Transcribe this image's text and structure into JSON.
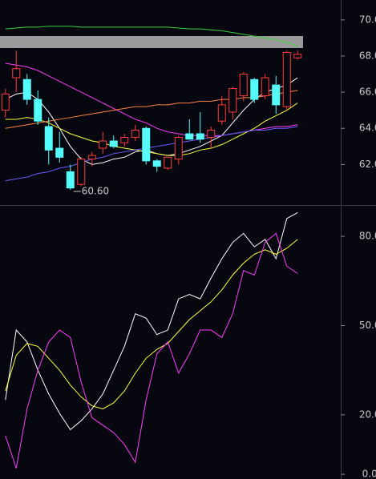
{
  "chart_data": [
    {
      "type": "candlestick",
      "categories": [
        null,
        null,
        null,
        null,
        null,
        null,
        null,
        null,
        null,
        null,
        null,
        null,
        null,
        null,
        null,
        null,
        null,
        null,
        null,
        null,
        null,
        null,
        null,
        null,
        null,
        null,
        null,
        null
      ],
      "open": [
        65.0,
        66.8,
        66.7,
        65.6,
        64.1,
        62.9,
        61.6,
        60.9,
        62.3,
        62.9,
        63.3,
        63.2,
        63.5,
        64.0,
        62.2,
        61.8,
        62.3,
        63.7,
        63.7,
        63.5,
        64.4,
        64.9,
        65.8,
        66.7,
        65.8,
        66.4,
        65.2,
        67.9
      ],
      "high": [
        66.2,
        68.3,
        67.0,
        66.1,
        64.6,
        63.8,
        62.0,
        62.4,
        62.7,
        63.8,
        63.6,
        63.7,
        64.2,
        64.1,
        62.3,
        62.4,
        63.6,
        64.5,
        64.9,
        64.1,
        65.8,
        66.3,
        67.1,
        66.8,
        67.0,
        66.9,
        68.3,
        68.3
      ],
      "low": [
        64.6,
        66.0,
        65.3,
        64.2,
        62.0,
        62.1,
        60.6,
        60.8,
        61.9,
        62.6,
        62.9,
        63.0,
        63.3,
        62.0,
        61.6,
        61.7,
        62.0,
        63.4,
        63.2,
        62.9,
        64.2,
        64.5,
        65.5,
        65.4,
        65.6,
        64.8,
        65.0,
        67.8
      ],
      "close": [
        65.9,
        67.3,
        65.6,
        64.4,
        62.8,
        62.4,
        60.7,
        62.3,
        62.5,
        63.3,
        63.0,
        63.5,
        63.9,
        62.2,
        61.9,
        62.4,
        63.5,
        63.4,
        63.4,
        63.9,
        65.3,
        66.2,
        67.0,
        65.6,
        66.8,
        65.3,
        68.2,
        68.1
      ],
      "up_color": "#ff3b3b",
      "down_color": "#54fcfc",
      "series": [
        {
          "color": "#ffffff",
          "values": [
            65.6,
            65.9,
            66.0,
            65.6,
            64.9,
            64.0,
            63.0,
            62.3,
            62.0,
            62.1,
            62.3,
            62.4,
            62.7,
            62.8,
            62.6,
            62.5,
            62.6,
            62.8,
            63.0,
            63.3,
            63.6,
            64.3,
            65.0,
            65.6,
            66.0,
            66.2,
            66.4,
            66.8
          ]
        },
        {
          "color": "#ffff3c",
          "values": [
            64.5,
            64.5,
            64.6,
            64.5,
            64.3,
            64.0,
            63.7,
            63.5,
            63.3,
            63.2,
            63.0,
            62.9,
            62.8,
            62.7,
            62.6,
            62.5,
            62.5,
            62.6,
            62.8,
            62.9,
            63.1,
            63.4,
            63.7,
            64.0,
            64.4,
            64.7,
            65.0,
            65.4
          ]
        },
        {
          "color": "#ff3cff",
          "values": [
            67.6,
            67.5,
            67.4,
            67.2,
            66.9,
            66.6,
            66.3,
            66.0,
            65.7,
            65.4,
            65.1,
            64.8,
            64.5,
            64.3,
            64.0,
            63.8,
            63.7,
            63.6,
            63.6,
            63.6,
            63.6,
            63.7,
            63.8,
            63.9,
            64.0,
            64.1,
            64.1,
            64.2
          ]
        },
        {
          "color": "#ff8040",
          "values": [
            64.0,
            64.1,
            64.2,
            64.3,
            64.4,
            64.5,
            64.6,
            64.7,
            64.8,
            64.9,
            65.0,
            65.1,
            65.2,
            65.2,
            65.3,
            65.3,
            65.4,
            65.4,
            65.5,
            65.5,
            65.6,
            65.6,
            65.7,
            65.7,
            65.8,
            65.9,
            66.0,
            66.1
          ]
        },
        {
          "color": "#6a5cff",
          "values": [
            61.1,
            61.2,
            61.3,
            61.5,
            61.6,
            61.8,
            61.9,
            62.1,
            62.3,
            62.4,
            62.6,
            62.7,
            62.8,
            62.9,
            63.0,
            63.1,
            63.2,
            63.3,
            63.4,
            63.5,
            63.6,
            63.7,
            63.8,
            63.9,
            63.9,
            64.0,
            64.0,
            64.1
          ]
        },
        {
          "color": "#3cd23c",
          "values": [
            69.5,
            69.55,
            69.6,
            69.6,
            69.65,
            69.65,
            69.65,
            69.6,
            69.6,
            69.6,
            69.6,
            69.6,
            69.6,
            69.6,
            69.6,
            69.6,
            69.55,
            69.5,
            69.5,
            69.45,
            69.4,
            69.3,
            69.2,
            69.1,
            69.0,
            68.9,
            68.75,
            68.55
          ]
        }
      ],
      "low_label": "60.60",
      "ylim": [
        59.8,
        71.1
      ],
      "yticks": [
        {
          "value": 62,
          "label": "62.00"
        },
        {
          "value": 64,
          "label": "64.00"
        },
        {
          "value": 66,
          "label": "66.00"
        },
        {
          "value": 68,
          "label": "68.00"
        },
        {
          "value": 70,
          "label": "70.00"
        }
      ]
    },
    {
      "type": "line",
      "categories": [
        null,
        null,
        null,
        null,
        null,
        null,
        null,
        null,
        null,
        null,
        null,
        null,
        null,
        null,
        null,
        null,
        null,
        null,
        null,
        null,
        null,
        null,
        null,
        null,
        null,
        null,
        null,
        null
      ],
      "series": [
        {
          "color": "#ffffff",
          "values": [
            25,
            48.5,
            44.5,
            35,
            27,
            20.5,
            15,
            18,
            22,
            27,
            35,
            43,
            54,
            52.5,
            47,
            48.5,
            59,
            60.5,
            59,
            66,
            72.5,
            78,
            81,
            76.5,
            79,
            72.5,
            86,
            88
          ]
        },
        {
          "color": "#ffff3c",
          "values": [
            28,
            40,
            44,
            43,
            39,
            35,
            30,
            26,
            23,
            22,
            24,
            28,
            34,
            39,
            42,
            44,
            48,
            52,
            55,
            58,
            62,
            67,
            71,
            74,
            75.5,
            74,
            76,
            79
          ]
        },
        {
          "color": "#ff3cff",
          "values": [
            13,
            2,
            22,
            35,
            44.5,
            48.5,
            46,
            31,
            19,
            16.5,
            14,
            10,
            4,
            25,
            40.5,
            44.5,
            34,
            40.5,
            48.5,
            48.5,
            46,
            54,
            68.5,
            67,
            78,
            81,
            70,
            67.5
          ]
        }
      ],
      "ylim": [
        -1.6,
        90.0
      ],
      "yticks": [
        {
          "value": 0,
          "label": "0.00"
        },
        {
          "value": 20,
          "label": "20.00"
        },
        {
          "value": 50,
          "label": "50.00"
        },
        {
          "value": 80,
          "label": "80.00"
        }
      ]
    }
  ]
}
